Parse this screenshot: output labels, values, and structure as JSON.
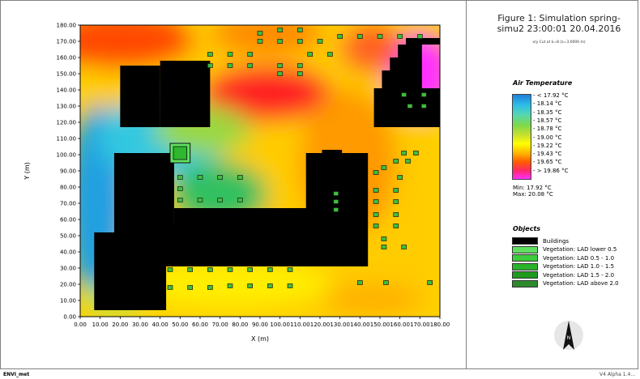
{
  "figure": {
    "title_line1": "Figure 1: Simulation spring-",
    "title_line2": "simu2 23:00:01 20.04.2016",
    "subtitle": "x/y Cut at k=8 (z=3.0000 m)"
  },
  "chart_data": {
    "type": "heatmap",
    "xlabel": "X (m)",
    "ylabel": "Y (m)",
    "xlim": [
      0,
      180
    ],
    "ylim": [
      0,
      180
    ],
    "xticks": [
      "0.00",
      "10.00",
      "20.00",
      "30.00",
      "40.00",
      "50.00",
      "60.00",
      "70.00",
      "80.00",
      "90.00",
      "100.00",
      "110.00",
      "120.00",
      "130.00",
      "140.00",
      "150.00",
      "160.00",
      "170.00",
      "180.00"
    ],
    "yticks": [
      "0.00",
      "10.00",
      "20.00",
      "30.00",
      "40.00",
      "50.00",
      "60.00",
      "70.00",
      "80.00",
      "90.00",
      "100.00",
      "110.00",
      "120.00",
      "130.00",
      "140.00",
      "150.00",
      "160.00",
      "170.00",
      "180.00"
    ],
    "buildings": [
      {
        "x": [
          20,
          40
        ],
        "y": [
          117,
          155
        ]
      },
      {
        "x": [
          40,
          65
        ],
        "y": [
          117,
          158
        ]
      },
      {
        "x": [
          17,
          47
        ],
        "y": [
          51,
          101
        ]
      },
      {
        "x": [
          7,
          43
        ],
        "y": [
          4,
          52
        ]
      },
      {
        "x": [
          27,
          72
        ],
        "y": [
          31,
          56
        ]
      },
      {
        "x": [
          47,
          117
        ],
        "y": [
          31,
          67
        ]
      },
      {
        "x": [
          113,
          144
        ],
        "y": [
          31,
          101
        ]
      },
      {
        "x": [
          121,
          131
        ],
        "y": [
          101,
          103
        ]
      },
      {
        "x": [
          147,
          191
        ],
        "y": [
          117,
          141
        ]
      },
      {
        "x": [
          151,
          171
        ],
        "y": [
          141,
          152
        ]
      },
      {
        "x": [
          155,
          171
        ],
        "y": [
          152,
          160
        ]
      },
      {
        "x": [
          159,
          171
        ],
        "y": [
          160,
          168
        ]
      },
      {
        "x": [
          163,
          195
        ],
        "y": [
          168,
          172
        ]
      }
    ],
    "vegetation_block": {
      "x": [
        45,
        55
      ],
      "y": [
        95,
        107
      ]
    },
    "vegetation_points": [
      [
        90,
        175
      ],
      [
        100,
        177
      ],
      [
        110,
        177
      ],
      [
        90,
        170
      ],
      [
        100,
        170
      ],
      [
        110,
        170
      ],
      [
        120,
        170
      ],
      [
        130,
        173
      ],
      [
        140,
        173
      ],
      [
        150,
        173
      ],
      [
        160,
        173
      ],
      [
        170,
        173
      ],
      [
        65,
        162
      ],
      [
        75,
        162
      ],
      [
        85,
        162
      ],
      [
        115,
        162
      ],
      [
        125,
        162
      ],
      [
        65,
        155
      ],
      [
        75,
        155
      ],
      [
        85,
        155
      ],
      [
        100,
        155
      ],
      [
        110,
        155
      ],
      [
        100,
        150
      ],
      [
        110,
        150
      ],
      [
        162,
        137
      ],
      [
        172,
        137
      ],
      [
        165,
        130
      ],
      [
        172,
        130
      ],
      [
        162,
        101
      ],
      [
        168,
        101
      ],
      [
        158,
        96
      ],
      [
        164,
        96
      ],
      [
        152,
        92
      ],
      [
        148,
        89
      ],
      [
        160,
        86
      ],
      [
        148,
        78
      ],
      [
        158,
        78
      ],
      [
        128,
        76
      ],
      [
        128,
        71
      ],
      [
        128,
        66
      ],
      [
        148,
        71
      ],
      [
        158,
        71
      ],
      [
        148,
        63
      ],
      [
        158,
        63
      ],
      [
        148,
        56
      ],
      [
        158,
        56
      ],
      [
        152,
        48
      ],
      [
        152,
        43
      ],
      [
        162,
        43
      ],
      [
        50,
        86
      ],
      [
        60,
        86
      ],
      [
        70,
        86
      ],
      [
        80,
        86
      ],
      [
        50,
        79
      ],
      [
        50,
        72
      ],
      [
        60,
        72
      ],
      [
        70,
        72
      ],
      [
        80,
        72
      ],
      [
        45,
        29
      ],
      [
        55,
        29
      ],
      [
        65,
        29
      ],
      [
        75,
        29
      ],
      [
        85,
        29
      ],
      [
        95,
        29
      ],
      [
        105,
        29
      ],
      [
        45,
        18
      ],
      [
        55,
        18
      ],
      [
        65,
        18
      ],
      [
        75,
        19
      ],
      [
        85,
        19
      ],
      [
        95,
        19
      ],
      [
        105,
        19
      ],
      [
        140,
        21
      ],
      [
        153,
        21
      ],
      [
        175,
        21
      ]
    ]
  },
  "legend": {
    "heading": "Air Temperature",
    "labels": [
      "< 17.92 °C",
      "18.14 °C",
      "18.35 °C",
      "18.57 °C",
      "18.78 °C",
      "19.00 °C",
      "19.22 °C",
      "19.43 °C",
      "19.65 °C",
      "> 19.86 °C"
    ],
    "min": "Min: 17.92 °C",
    "max": "Max: 20.08 °C"
  },
  "objects": {
    "heading": "Objects",
    "items": [
      {
        "label": "Buildings",
        "color": "#000000"
      },
      {
        "label": "Vegetation: LAD lower 0.5",
        "color": "#5ee05e"
      },
      {
        "label": "Vegetation: LAD 0.5 - 1.0",
        "color": "#3ccc3c"
      },
      {
        "label": "Vegetation: LAD 1.0 - 1.5",
        "color": "#2ab32a"
      },
      {
        "label": "Vegetation: LAD 1.5 - 2.0",
        "color": "#1f9a1f"
      },
      {
        "label": "Vegetation: LAD above 2.0",
        "color": "#2d8a2d"
      }
    ]
  },
  "compass": {
    "label": "N"
  },
  "footer": {
    "left": "ENVI_met",
    "right": "V4 Alpha 1.4..."
  }
}
